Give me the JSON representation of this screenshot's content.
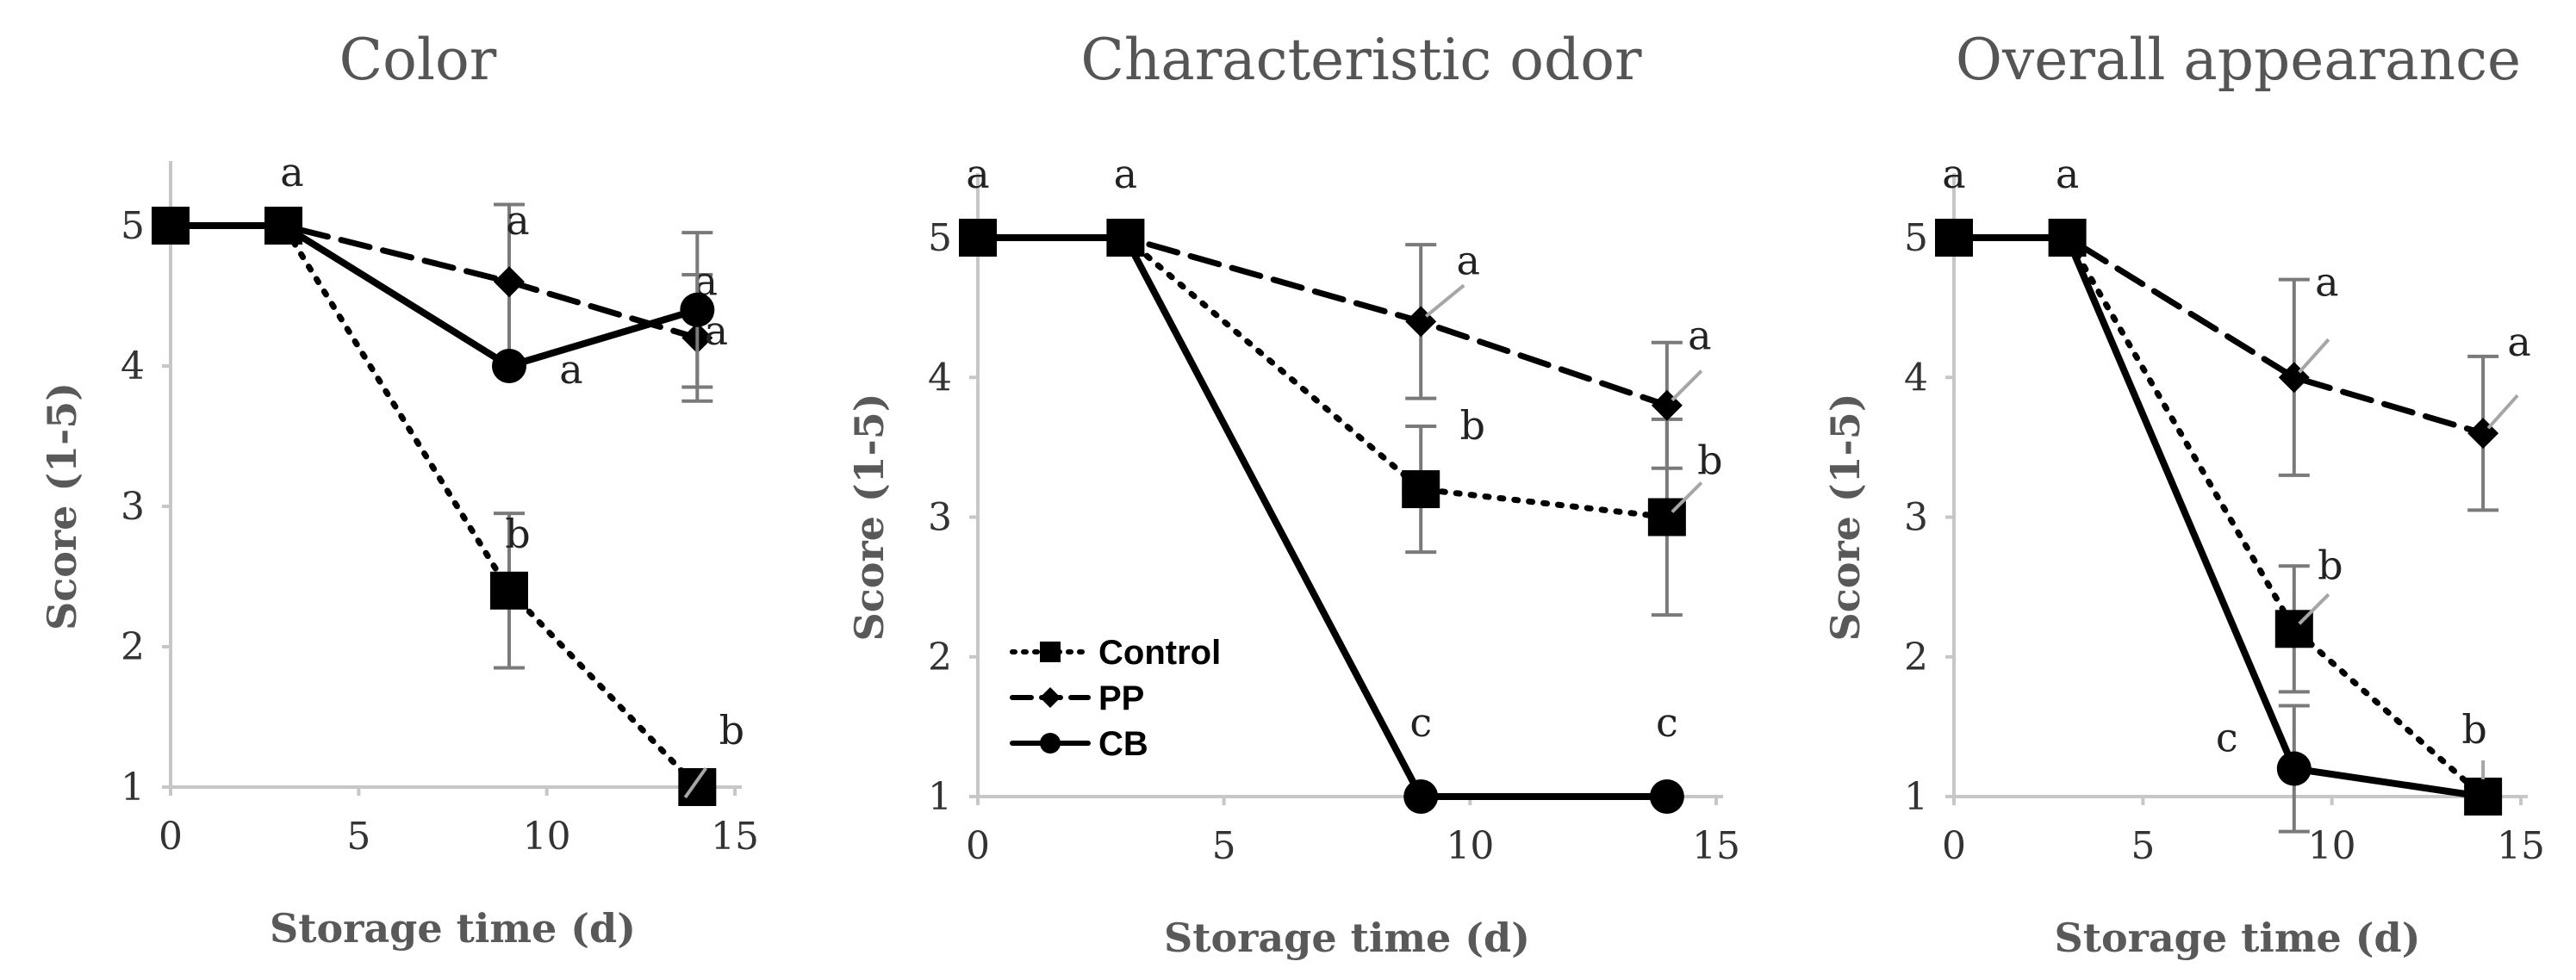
{
  "chart_data": [
    {
      "type": "line",
      "title": "Color",
      "xlabel": "Storage time (d)",
      "ylabel": "Score (1-5)",
      "xlim": [
        0,
        15
      ],
      "ylim": [
        1,
        5
      ],
      "x_ticks": [
        "0",
        "5",
        "10",
        "15"
      ],
      "y_ticks": [
        "1",
        "2",
        "3",
        "4",
        "5"
      ],
      "grid": false,
      "x": [
        0,
        3,
        9,
        14
      ],
      "series": [
        {
          "name": "Control",
          "style": "dotted",
          "marker": "square",
          "values": [
            5,
            5,
            2.4,
            1
          ],
          "errors": [
            0,
            0,
            0.55,
            0
          ],
          "labels": [
            "",
            "a",
            "b",
            "b"
          ]
        },
        {
          "name": "PP",
          "style": "dashed",
          "marker": "diamond",
          "values": [
            5,
            5,
            4.6,
            4.2
          ],
          "errors": [
            0,
            0,
            0.55,
            0.45
          ],
          "labels": [
            "",
            "",
            "a",
            "a"
          ]
        },
        {
          "name": "CB",
          "style": "solid",
          "marker": "circle",
          "values": [
            5,
            5,
            4.0,
            4.4
          ],
          "errors": [
            0,
            0,
            0,
            0.55
          ],
          "labels": [
            "",
            "",
            "a",
            "a"
          ]
        }
      ]
    },
    {
      "type": "line",
      "title": "Characteristic odor",
      "xlabel": "Storage time (d)",
      "ylabel": "Score (1-5)",
      "xlim": [
        0,
        15
      ],
      "ylim": [
        1,
        5
      ],
      "x_ticks": [
        "0",
        "5",
        "10",
        "15"
      ],
      "y_ticks": [
        "1",
        "2",
        "3",
        "4",
        "5"
      ],
      "grid": false,
      "legend": {
        "position": "lower-left",
        "entries": [
          "Control",
          "PP",
          "CB"
        ]
      },
      "x": [
        0,
        3,
        9,
        14
      ],
      "series": [
        {
          "name": "Control",
          "style": "dotted",
          "marker": "square",
          "values": [
            5,
            5,
            3.2,
            3.0
          ],
          "errors": [
            0,
            0,
            0.45,
            0.7
          ],
          "labels": [
            "a",
            "a",
            "b",
            "b"
          ]
        },
        {
          "name": "PP",
          "style": "dashed",
          "marker": "diamond",
          "values": [
            5,
            5,
            4.4,
            3.8
          ],
          "errors": [
            0,
            0,
            0.55,
            0.45
          ],
          "labels": [
            "",
            "",
            "a",
            "a"
          ]
        },
        {
          "name": "CB",
          "style": "solid",
          "marker": "circle",
          "values": [
            5,
            5,
            1,
            1
          ],
          "errors": [
            0,
            0,
            0,
            0
          ],
          "labels": [
            "",
            "",
            "c",
            "c"
          ]
        }
      ]
    },
    {
      "type": "line",
      "title": "Overall appearance",
      "xlabel": "Storage time (d)",
      "ylabel": "Score (1-5)",
      "xlim": [
        0,
        15
      ],
      "ylim": [
        1,
        5
      ],
      "x_ticks": [
        "0",
        "5",
        "10",
        "15"
      ],
      "y_ticks": [
        "1",
        "2",
        "3",
        "4",
        "5"
      ],
      "grid": false,
      "x": [
        0,
        3,
        9,
        14
      ],
      "series": [
        {
          "name": "Control",
          "style": "dotted",
          "marker": "square",
          "values": [
            5,
            5,
            2.2,
            1.0
          ],
          "errors": [
            0,
            0,
            0.45,
            0
          ],
          "labels": [
            "a",
            "a",
            "b",
            "b"
          ]
        },
        {
          "name": "PP",
          "style": "dashed",
          "marker": "diamond",
          "values": [
            5,
            5,
            4.0,
            3.6
          ],
          "errors": [
            0,
            0,
            0.7,
            0.55
          ],
          "labels": [
            "",
            "",
            "a",
            "a"
          ]
        },
        {
          "name": "CB",
          "style": "solid",
          "marker": "circle",
          "values": [
            5,
            5,
            1.2,
            1.0
          ],
          "errors": [
            0,
            0,
            0.45,
            0
          ],
          "labels": [
            "",
            "",
            "c",
            ""
          ]
        }
      ]
    }
  ]
}
